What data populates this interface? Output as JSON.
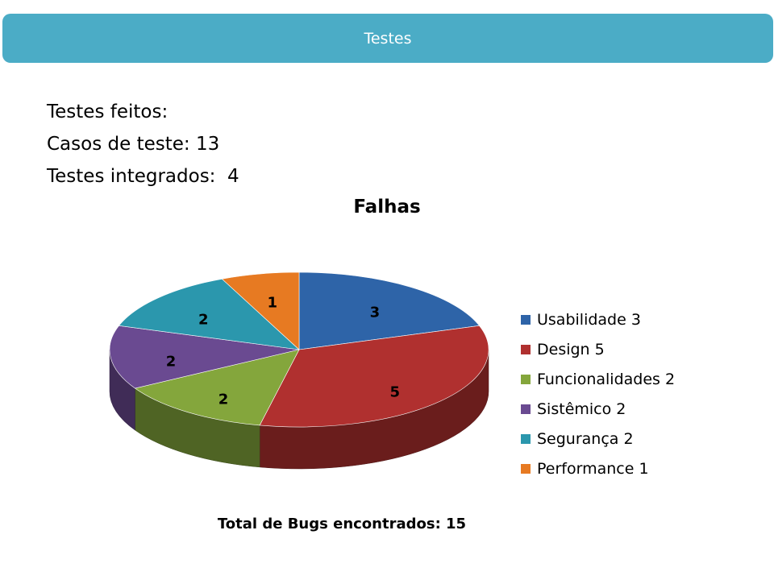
{
  "header": {
    "title": "Testes"
  },
  "stats": [
    "Testes feitos:",
    "Casos de teste: 13",
    "Testes integrados:  4"
  ],
  "chart_data": {
    "type": "pie",
    "title": "Falhas",
    "labels": [
      "Usabilidade",
      "Design",
      "Funcionalidades",
      "Sistêmico",
      "Segurança",
      "Performance"
    ],
    "values": [
      3,
      5,
      2,
      2,
      2,
      1
    ],
    "legend_labels": [
      "Usabilidade 3",
      "Design 5",
      "Funcionalidades 2",
      "Sistêmico 2",
      "Segurança 2",
      "Performance 1"
    ],
    "colors": [
      "#2e64a8",
      "#b0302f",
      "#84a63c",
      "#6a4a91",
      "#2b97ad",
      "#e77a22"
    ],
    "legend_position": "right",
    "style": "3d"
  },
  "footer": {
    "total": "Total de Bugs encontrados: 15"
  }
}
